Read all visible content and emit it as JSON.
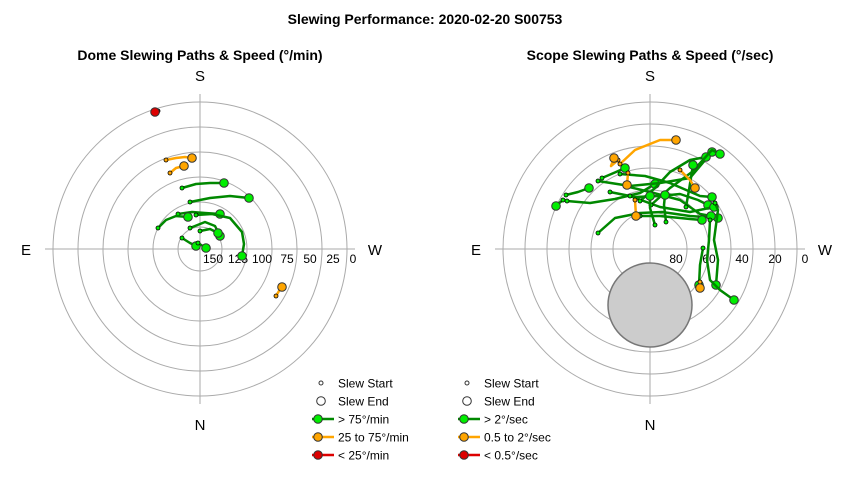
{
  "title": "Slewing Performance: 2020-02-20 S00753",
  "colors": {
    "fast": "#00ee00",
    "fast_line": "#008800",
    "medium": "#ffa500",
    "slow": "#dd0000",
    "grid": "#aaaaaa",
    "obstruction": "#cccccc"
  },
  "chart_data": [
    {
      "type": "polar",
      "title": "Dome Slewing Paths & Speed (°/min)",
      "compass": {
        "top": "S",
        "bottom": "N",
        "left": "E",
        "right": "W"
      },
      "radial_ticks": [
        "150",
        "125",
        "100",
        "75",
        "50",
        "25",
        "0"
      ],
      "legend": [
        {
          "symbol": "start",
          "label": "Slew Start"
        },
        {
          "symbol": "end",
          "label": "Slew End"
        },
        {
          "symbol": "fast",
          "label": "> 75°/min"
        },
        {
          "symbol": "medium",
          "label": "25 to 75°/min"
        },
        {
          "symbol": "slow",
          "label": "< 25°/min"
        }
      ],
      "paths": [
        {
          "speed": "fast",
          "points": [
            [
              182,
              188
            ],
            [
              196,
              184
            ],
            [
              210,
              183
            ],
            [
              224,
              183
            ]
          ]
        },
        {
          "speed": "fast",
          "points": [
            [
              190,
              202
            ],
            [
              210,
              198
            ],
            [
              230,
              196
            ],
            [
              249,
              198
            ]
          ]
        },
        {
          "speed": "fast",
          "points": [
            [
              178,
              214
            ],
            [
              192,
              212
            ],
            [
              205,
              213
            ],
            [
              220,
              214
            ]
          ]
        },
        {
          "speed": "fast",
          "points": [
            [
              196,
              215
            ],
            [
              212,
              214
            ],
            [
              230,
              218
            ],
            [
              242,
              232
            ],
            [
              244,
              244
            ],
            [
              242,
              256
            ]
          ]
        },
        {
          "speed": "fast",
          "points": [
            [
              190,
              228
            ],
            [
              205,
              222
            ],
            [
              215,
              226
            ],
            [
              220,
              236
            ]
          ]
        },
        {
          "speed": "fast",
          "points": [
            [
              200,
              231
            ],
            [
              210,
              229
            ],
            [
              218,
              233
            ]
          ]
        },
        {
          "speed": "fast",
          "points": [
            [
              182,
              238
            ],
            [
              190,
              243
            ],
            [
              196,
              246
            ]
          ]
        },
        {
          "speed": "fast",
          "points": [
            [
              198,
              243
            ],
            [
              206,
              248
            ]
          ]
        },
        {
          "speed": "fast",
          "points": [
            [
              158,
              228
            ],
            [
              166,
              220
            ],
            [
              176,
              216
            ],
            [
              188,
              217
            ]
          ]
        },
        {
          "speed": "medium",
          "points": [
            [
              166,
              160
            ],
            [
              176,
              158
            ],
            [
              185,
              157
            ],
            [
              192,
              158
            ]
          ]
        },
        {
          "speed": "medium",
          "points": [
            [
              170,
              173
            ],
            [
              176,
              168
            ],
            [
              184,
              166
            ]
          ]
        },
        {
          "speed": "medium",
          "points": [
            [
              276,
              296
            ],
            [
              279,
              291
            ],
            [
              282,
              287
            ]
          ]
        },
        {
          "speed": "slow",
          "points": [
            [
              158,
              111
            ],
            [
              155,
              112
            ]
          ]
        }
      ]
    },
    {
      "type": "polar",
      "title": "Scope Slewing Paths & Speed (°/sec)",
      "compass": {
        "top": "S",
        "bottom": "N",
        "left": "E",
        "right": "W"
      },
      "radial_ticks": [
        "80",
        "60",
        "40",
        "20",
        "0"
      ],
      "legend": [
        {
          "symbol": "start",
          "label": "Slew Start"
        },
        {
          "symbol": "end",
          "label": "Slew End"
        },
        {
          "symbol": "fast",
          "label": "> 2°/sec"
        },
        {
          "symbol": "medium",
          "label": "0.5 to 2°/sec"
        },
        {
          "symbol": "slow",
          "label": "< 0.5°/sec"
        }
      ],
      "paths": [
        {
          "speed": "fast",
          "points": [
            [
              566,
              195
            ],
            [
              578,
              192
            ],
            [
              589,
              188
            ]
          ]
        },
        {
          "speed": "fast",
          "points": [
            [
              563,
              200
            ],
            [
              558,
              204
            ],
            [
              556,
              206
            ]
          ]
        },
        {
          "speed": "fast",
          "points": [
            [
              567,
              201
            ],
            [
              590,
              203
            ],
            [
              615,
              199
            ],
            [
              640,
              193
            ],
            [
              655,
              184
            ]
          ]
        },
        {
          "speed": "fast",
          "points": [
            [
              598,
              233
            ],
            [
              615,
              218
            ],
            [
              640,
              213
            ],
            [
              662,
              212
            ],
            [
              690,
              216
            ],
            [
              718,
              218
            ]
          ]
        },
        {
          "speed": "fast",
          "points": [
            [
              598,
              181
            ],
            [
              630,
              186
            ],
            [
              660,
              183
            ],
            [
              690,
              178
            ],
            [
              712,
              152
            ]
          ]
        },
        {
          "speed": "fast",
          "points": [
            [
              602,
              178
            ],
            [
              616,
              172
            ],
            [
              625,
              168
            ]
          ]
        },
        {
          "speed": "fast",
          "points": [
            [
              620,
              174
            ],
            [
              645,
              176
            ],
            [
              670,
              183
            ],
            [
              700,
              196
            ],
            [
              712,
              197
            ]
          ]
        },
        {
          "speed": "fast",
          "points": [
            [
              625,
              186
            ],
            [
              650,
              192
            ],
            [
              680,
              200
            ],
            [
              700,
              214
            ],
            [
              711,
              216
            ]
          ]
        },
        {
          "speed": "fast",
          "points": [
            [
              610,
              192
            ],
            [
              635,
              197
            ],
            [
              660,
              196
            ],
            [
              680,
              194
            ],
            [
              698,
              200
            ],
            [
              708,
              205
            ]
          ]
        },
        {
          "speed": "fast",
          "points": [
            [
              630,
              196
            ],
            [
              660,
              207
            ],
            [
              690,
              212
            ],
            [
              714,
              207
            ]
          ]
        },
        {
          "speed": "fast",
          "points": [
            [
              640,
              201
            ],
            [
              655,
              188
            ],
            [
              670,
              172
            ],
            [
              690,
              160
            ],
            [
              706,
              157
            ]
          ]
        },
        {
          "speed": "fast",
          "points": [
            [
              651,
              205
            ],
            [
              670,
              188
            ],
            [
              692,
              172
            ],
            [
              712,
              150
            ],
            [
              720,
              154
            ]
          ]
        },
        {
          "speed": "fast",
          "points": [
            [
              640,
              216
            ],
            [
              660,
              216
            ],
            [
              690,
              219
            ],
            [
              702,
              220
            ]
          ]
        },
        {
          "speed": "fast",
          "points": [
            [
              715,
              203
            ],
            [
              718,
              210
            ],
            [
              714,
              240
            ],
            [
              718,
              260
            ],
            [
              716,
              285
            ]
          ]
        },
        {
          "speed": "fast",
          "points": [
            [
              710,
              220
            ],
            [
              709,
              240
            ],
            [
              707,
              260
            ],
            [
              710,
              280
            ],
            [
              720,
              290
            ],
            [
              734,
              300
            ]
          ]
        },
        {
          "speed": "fast",
          "points": [
            [
              703,
              248
            ],
            [
              700,
              265
            ],
            [
              699,
              285
            ]
          ]
        },
        {
          "speed": "fast",
          "points": [
            [
              686,
              207
            ],
            [
              689,
              190
            ],
            [
              693,
              165
            ]
          ]
        },
        {
          "speed": "fast",
          "points": [
            [
              655,
              225
            ],
            [
              650,
              208
            ],
            [
              650,
              196
            ]
          ]
        },
        {
          "speed": "fast",
          "points": [
            [
              666,
              222
            ],
            [
              664,
              205
            ],
            [
              665,
              195
            ]
          ]
        },
        {
          "speed": "medium",
          "points": [
            [
              620,
              164
            ],
            [
              635,
              150
            ],
            [
              660,
              140
            ],
            [
              676,
              140
            ]
          ]
        },
        {
          "speed": "medium",
          "points": [
            [
              618,
              160
            ],
            [
              611,
              166
            ],
            [
              614,
              158
            ]
          ]
        },
        {
          "speed": "medium",
          "points": [
            [
              628,
              173
            ],
            [
              627,
              185
            ]
          ]
        },
        {
          "speed": "medium",
          "points": [
            [
              680,
              170
            ],
            [
              690,
              180
            ],
            [
              695,
              188
            ]
          ]
        },
        {
          "speed": "medium",
          "points": [
            [
              635,
              200
            ],
            [
              636,
              216
            ]
          ]
        },
        {
          "speed": "medium",
          "points": [
            [
              700,
              282
            ],
            [
              700,
              288
            ]
          ]
        }
      ]
    }
  ]
}
